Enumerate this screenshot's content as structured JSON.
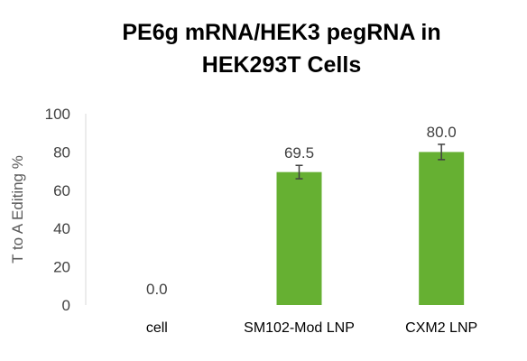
{
  "chart_data": {
    "type": "bar",
    "title_lines": [
      "PE6g mRNA/HEK3 pegRNA in",
      "HEK293T Cells"
    ],
    "ylabel": "T to A Editing %",
    "xlabel": "",
    "ylim": [
      0,
      100
    ],
    "yticks": [
      0,
      20,
      40,
      60,
      80,
      100
    ],
    "ytick_labels": [
      "0",
      "20",
      "40",
      "60",
      "80",
      "100"
    ],
    "categories": [
      "cell",
      "SM102-Mod LNP",
      "CXM2 LNP"
    ],
    "values": [
      0.0,
      69.5,
      80.0
    ],
    "value_labels": [
      "0.0",
      "69.5",
      "80.0"
    ],
    "error": [
      0,
      3.5,
      4.0
    ],
    "grid": false,
    "bar_color": "#66b032",
    "error_color": "#404040"
  }
}
